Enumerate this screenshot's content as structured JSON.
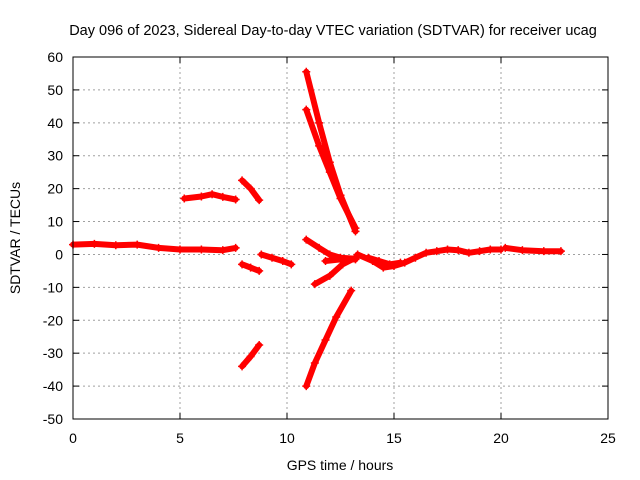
{
  "chart_data": {
    "type": "scatter",
    "title": "Day 096 of 2023, Sidereal Day-to-day VTEC variation (SDTVAR) for receiver ucag",
    "xlabel": "GPS time / hours",
    "ylabel": "SDTVAR / TECUs",
    "xlim": [
      0,
      25
    ],
    "ylim": [
      -50,
      60
    ],
    "xticks": [
      0,
      5,
      10,
      15,
      20,
      25
    ],
    "yticks": [
      -50,
      -40,
      -30,
      -20,
      -10,
      0,
      10,
      20,
      30,
      40,
      50,
      60
    ],
    "grid": true,
    "marker_color": "#ff0000",
    "series": [
      {
        "name": "track-baseline-a",
        "points": [
          [
            0,
            3
          ],
          [
            1,
            3.2
          ],
          [
            2,
            2.8
          ],
          [
            3,
            3
          ],
          [
            4,
            2
          ],
          [
            5,
            1.5
          ],
          [
            6,
            1.5
          ],
          [
            7,
            1.3
          ],
          [
            7.6,
            2
          ]
        ]
      },
      {
        "name": "track-upper-a",
        "points": [
          [
            5.2,
            17
          ],
          [
            6,
            17.6
          ],
          [
            6.5,
            18.3
          ],
          [
            7,
            17.5
          ],
          [
            7.6,
            16.7
          ]
        ]
      },
      {
        "name": "track-upper-b",
        "points": [
          [
            7.9,
            22.5
          ],
          [
            8.3,
            20
          ],
          [
            8.7,
            16.5
          ]
        ]
      },
      {
        "name": "track-lower-a",
        "points": [
          [
            7.9,
            -3
          ],
          [
            8.3,
            -4
          ],
          [
            8.7,
            -5
          ]
        ]
      },
      {
        "name": "track-lower-b",
        "points": [
          [
            7.9,
            -34
          ],
          [
            8.3,
            -31
          ],
          [
            8.7,
            -27.5
          ]
        ]
      },
      {
        "name": "track-mid-a",
        "points": [
          [
            8.8,
            0
          ],
          [
            9.3,
            -1
          ],
          [
            9.8,
            -2
          ],
          [
            10.2,
            -3
          ]
        ]
      },
      {
        "name": "track-steep-a",
        "points": [
          [
            10.9,
            55.5
          ],
          [
            11.5,
            40
          ],
          [
            12,
            28
          ],
          [
            12.5,
            18
          ],
          [
            13.2,
            7
          ]
        ]
      },
      {
        "name": "track-steep-b",
        "points": [
          [
            10.9,
            44
          ],
          [
            11.5,
            33
          ],
          [
            12,
            25
          ],
          [
            12.5,
            17
          ],
          [
            13.2,
            8
          ]
        ]
      },
      {
        "name": "track-steep-c",
        "points": [
          [
            10.9,
            -40
          ],
          [
            11.3,
            -33
          ],
          [
            11.8,
            -26
          ],
          [
            12.3,
            -19
          ],
          [
            13,
            -11
          ]
        ]
      },
      {
        "name": "track-mid-b",
        "points": [
          [
            10.9,
            4.5
          ],
          [
            11.5,
            2
          ],
          [
            12,
            0
          ],
          [
            12.5,
            -1
          ],
          [
            13.2,
            -1.3
          ]
        ]
      },
      {
        "name": "track-mid-c",
        "points": [
          [
            11.3,
            -9
          ],
          [
            12,
            -6.5
          ],
          [
            12.6,
            -3
          ],
          [
            13.2,
            -1
          ]
        ]
      },
      {
        "name": "track-mid-d",
        "points": [
          [
            11.8,
            -2
          ],
          [
            12.5,
            -1.5
          ],
          [
            13.2,
            -1.5
          ]
        ]
      },
      {
        "name": "track-mid-e",
        "points": [
          [
            13.3,
            0
          ],
          [
            14,
            -2
          ],
          [
            14.5,
            -4
          ],
          [
            15,
            -3.5
          ],
          [
            15.5,
            -2.5
          ],
          [
            16,
            -1
          ],
          [
            16.5,
            0.5
          ],
          [
            17,
            1
          ],
          [
            17.5,
            1.5
          ],
          [
            18,
            1.3
          ],
          [
            18.5,
            0.5
          ],
          [
            19,
            1
          ],
          [
            19.5,
            1.5
          ],
          [
            20,
            1.5
          ]
        ]
      },
      {
        "name": "track-mid-f",
        "points": [
          [
            13.8,
            -1
          ],
          [
            14.3,
            -2
          ],
          [
            14.8,
            -3
          ],
          [
            15.3,
            -2.5
          ]
        ]
      },
      {
        "name": "track-baseline-b",
        "points": [
          [
            20.2,
            2
          ],
          [
            21,
            1.3
          ],
          [
            22,
            1
          ],
          [
            22.8,
            1
          ]
        ]
      }
    ]
  }
}
